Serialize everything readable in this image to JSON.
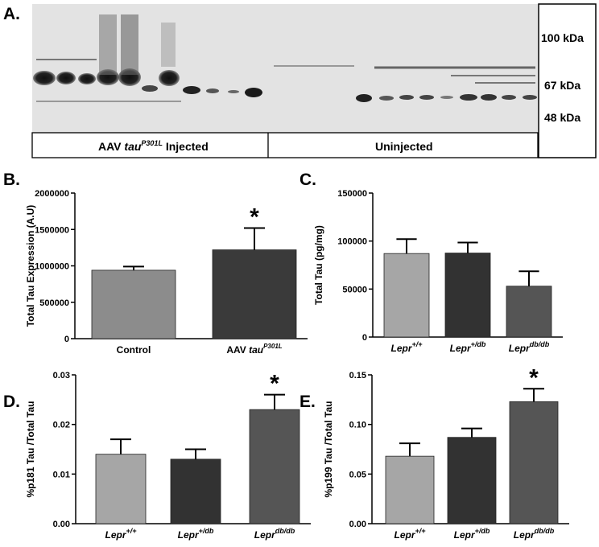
{
  "blot": {
    "panel_label": "A.",
    "mw_markers": [
      "100 kDa",
      "67 kDa",
      "48 kDa"
    ],
    "groups": {
      "injected_prefix": "AAV ",
      "injected_gene": "tau",
      "injected_sup": "P301L",
      "injected_suffix": " Injected",
      "uninjected": "Uninjected"
    }
  },
  "chart_data": [
    {
      "id": "B",
      "panel_label": "B.",
      "type": "bar",
      "categories": [
        {
          "text": "Control",
          "italic": false,
          "sup": ""
        },
        {
          "text": "AAV ",
          "italic_part": "tau",
          "sup": "P301L"
        }
      ],
      "values": [
        940000,
        1220000
      ],
      "errors": [
        50000,
        300000
      ],
      "colors": [
        "#8c8c8c",
        "#3a3a3a"
      ],
      "significance": [
        "",
        "*"
      ],
      "ylabel": "Total Tau Expression (A.U)",
      "ylim": [
        0,
        2000000
      ],
      "yticks": [
        "0",
        "500000",
        "1000000",
        "1500000",
        "2000000"
      ],
      "ytick_values": [
        0,
        500000,
        1000000,
        1500000,
        2000000
      ]
    },
    {
      "id": "C",
      "panel_label": "C.",
      "type": "bar",
      "categories": [
        {
          "text": "Lepr",
          "sup": "+/+"
        },
        {
          "text": "Lepr",
          "sup": "+/db"
        },
        {
          "text": "Lepr",
          "sup": "db/db"
        }
      ],
      "values": [
        87000,
        87500,
        53000
      ],
      "errors": [
        15000,
        11000,
        15500
      ],
      "colors": [
        "#a6a6a6",
        "#323232",
        "#555555"
      ],
      "significance": [
        "",
        "",
        ""
      ],
      "ylabel": "Total Tau (pg/mg)",
      "ylim": [
        0,
        150000
      ],
      "yticks": [
        "0",
        "50000",
        "100000",
        "150000"
      ],
      "ytick_values": [
        0,
        50000,
        100000,
        150000
      ]
    },
    {
      "id": "D",
      "panel_label": "D.",
      "type": "bar",
      "categories": [
        {
          "text": "Lepr",
          "sup": "+/+"
        },
        {
          "text": "Lepr",
          "sup": "+/db"
        },
        {
          "text": "Lepr",
          "sup": "db/db"
        }
      ],
      "values": [
        0.014,
        0.013,
        0.023
      ],
      "errors": [
        0.003,
        0.002,
        0.003
      ],
      "colors": [
        "#a6a6a6",
        "#323232",
        "#555555"
      ],
      "significance": [
        "",
        "",
        "*"
      ],
      "ylabel": "%p181 Tau /Total Tau",
      "ylim": [
        0,
        0.03
      ],
      "yticks": [
        "0.00",
        "0.01",
        "0.02",
        "0.03"
      ],
      "ytick_values": [
        0,
        0.01,
        0.02,
        0.03
      ]
    },
    {
      "id": "E",
      "panel_label": "E.",
      "type": "bar",
      "categories": [
        {
          "text": "Lepr",
          "sup": "+/+"
        },
        {
          "text": "Lepr",
          "sup": "+/db"
        },
        {
          "text": "Lepr",
          "sup": "db/db"
        }
      ],
      "values": [
        0.068,
        0.087,
        0.123
      ],
      "errors": [
        0.013,
        0.009,
        0.013
      ],
      "colors": [
        "#a6a6a6",
        "#323232",
        "#555555"
      ],
      "significance": [
        "",
        "",
        "*"
      ],
      "ylabel": "%p199 Tau /Total Tau",
      "ylim": [
        0,
        0.15
      ],
      "yticks": [
        "0.00",
        "0.05",
        "0.10",
        "0.15"
      ],
      "ytick_values": [
        0,
        0.05,
        0.1,
        0.15
      ]
    }
  ]
}
